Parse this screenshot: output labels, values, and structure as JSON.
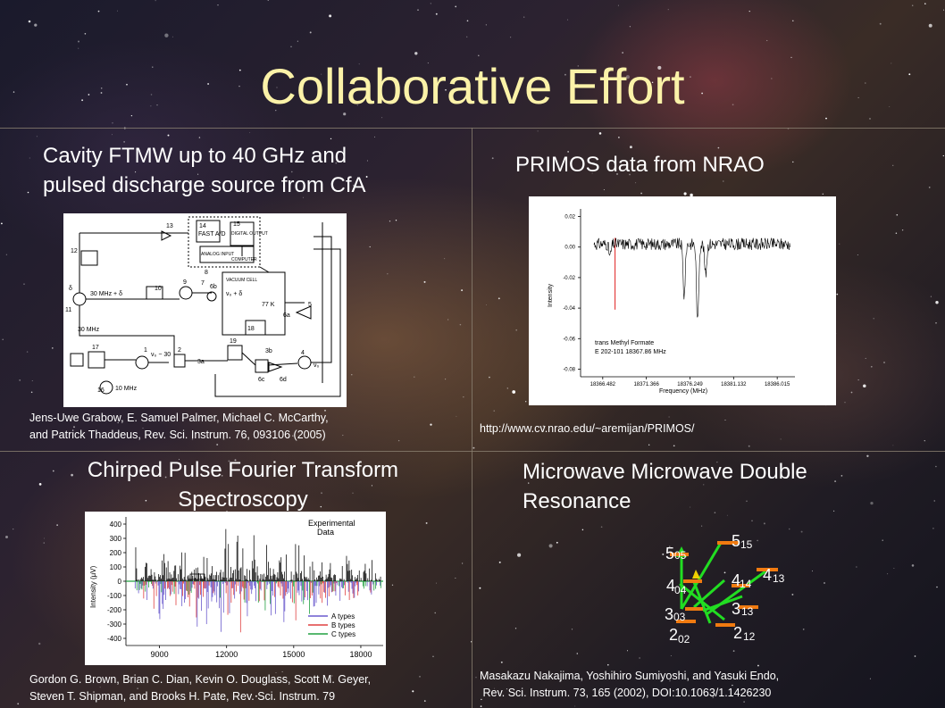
{
  "slide": {
    "title": "Collaborative Effort",
    "panels": {
      "top_left": {
        "heading_line1": "Cavity FTMW up to 40 GHz and",
        "heading_line2": "pulsed discharge source from CfA",
        "citation_line1": "Jens-Uwe Grabow, E. Samuel Palmer, Michael C. McCarthy,",
        "citation_line2": "and Patrick Thaddeus, Rev. Sci. Instrum. 76, 093106 (2005)",
        "figure_labels": {
          "fast_ad": "FAST A/D",
          "digital_output": "DIGITAL OUTPUT",
          "analog_input": "ANALOG INPUT",
          "computer": "COMPUTER",
          "vacuum_cell": "VACUUM CELL",
          "f30mhz_a": "30 MHz + δ",
          "f30mhz_b": "30 MHz",
          "f10mhz": "10 MHz",
          "vo_minus30": "ν₀ − 30",
          "vo_plus_d": "ν₀ + δ",
          "vo": "ν₀",
          "temp": "77 K",
          "n12": "12",
          "n13": "13",
          "n14": "14",
          "n15": "15",
          "n10": "10",
          "n9": "9",
          "n11": "11",
          "n17": "17",
          "n1": "1",
          "n2": "2",
          "n3a": "3a",
          "n16": "16",
          "n19": "19",
          "n18": "18",
          "n6a": "6a",
          "n6b": "6b",
          "n6c": "6c",
          "n6d": "6d",
          "n3b": "3b",
          "n4": "4",
          "n5": "5",
          "n7": "7",
          "n8": "8",
          "delta": "δ"
        }
      },
      "top_right": {
        "heading": "PRIMOS data from NRAO",
        "citation": "http://www.cv.nrao.edu/~aremijan/PRIMOS/"
      },
      "bottom_left": {
        "heading_line1": "Chirped Pulse Fourier Transform",
        "heading_line2": "Spectroscopy",
        "citation_line1": "Gordon G. Brown, Brian C. Dian, Kevin O. Douglass, Scott M. Geyer,",
        "citation_line2": "Steven T. Shipman, and Brooks H. Pate, Rev. Sci. Instrum. 79"
      },
      "bottom_right": {
        "heading_line1": "Microwave Microwave Double",
        "heading_line2": "Resonance",
        "citation_line1": "Masakazu Nakajima, Yoshihiro Sumiyoshi, and Yasuki Endo,",
        "citation_line2": " Rev. Sci. Instrum. 73, 165 (2002), DOI:10.1063/1.1426230",
        "levels": [
          {
            "main": "5",
            "sub": "05"
          },
          {
            "main": "4",
            "sub": "04"
          },
          {
            "main": "3",
            "sub": "03"
          },
          {
            "main": "2",
            "sub": "02"
          },
          {
            "main": "5",
            "sub": "15"
          },
          {
            "main": "4",
            "sub": "14"
          },
          {
            "main": "4",
            "sub": "13"
          },
          {
            "main": "3",
            "sub": "13"
          },
          {
            "main": "2",
            "sub": "12"
          }
        ],
        "colors": {
          "level": "#f07a10",
          "arrow": "#22dd22"
        }
      }
    }
  },
  "chart_data": [
    {
      "type": "line",
      "title": "",
      "xlabel": "Frequency (MHz)",
      "ylabel": "Intensity",
      "x_ticks": [
        "18366.482",
        "18371.366",
        "18376.249",
        "18381.132",
        "18386.015"
      ],
      "y_ticks": [
        "0.02",
        "0.00",
        "-0.02",
        "-0.04",
        "-0.06",
        "-0.08"
      ],
      "xlim": [
        18364.0,
        18388.0
      ],
      "ylim": [
        -0.085,
        0.025
      ],
      "annotation_line1": "trans Methyl Formate",
      "annotation_line2": "E 202-101 18367.86 MHz",
      "marker_x": 18367.86,
      "marker_color": "#e02020",
      "features": [
        {
          "x": 18367.3,
          "y": -0.008
        },
        {
          "x": 18375.6,
          "y": -0.034
        },
        {
          "x": 18377.1,
          "y": -0.052
        },
        {
          "x": 18378.0,
          "y": -0.02
        }
      ]
    },
    {
      "type": "bar",
      "title": "",
      "xlabel": "",
      "ylabel": "Intensity (μV)",
      "x_ticks": [
        "9000",
        "12000",
        "15000",
        "18000"
      ],
      "y_ticks": [
        "400",
        "300",
        "200",
        "100",
        "0",
        "-100",
        "-200",
        "-300",
        "-400"
      ],
      "xlim": [
        7500,
        19000
      ],
      "ylim": [
        -450,
        450
      ],
      "legend_title_line1": "Experimental",
      "legend_title_line2": "Data",
      "series": [
        {
          "name": "A types",
          "color": "#6a5acd"
        },
        {
          "name": "B types",
          "color": "#e04040"
        },
        {
          "name": "C types",
          "color": "#20a040"
        }
      ]
    }
  ]
}
